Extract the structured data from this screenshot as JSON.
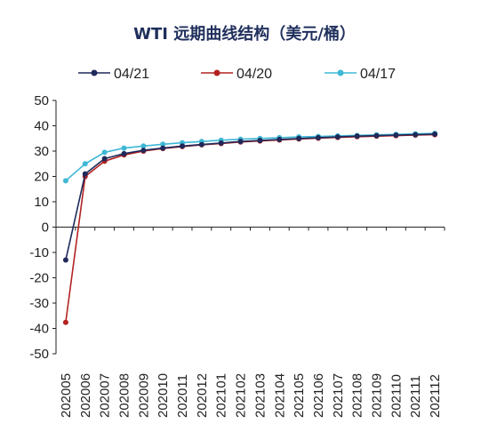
{
  "chart_data": {
    "type": "line",
    "title": "WTI 远期曲线结构（美元/桶）",
    "xlabel": "",
    "ylabel": "",
    "ylim": [
      -50,
      50
    ],
    "yticks": [
      "50",
      "40",
      "30",
      "20",
      "10",
      "0",
      "-10",
      "-20",
      "-30",
      "-40",
      "-50"
    ],
    "grid": false,
    "legend_position": "top",
    "categories": [
      "202005",
      "202006",
      "202007",
      "202008",
      "202009",
      "202010",
      "202011",
      "202012",
      "202101",
      "202102",
      "202103",
      "202104",
      "202105",
      "202106",
      "202107",
      "202108",
      "202109",
      "202110",
      "202111",
      "202112"
    ],
    "series": [
      {
        "name": "04/21",
        "color": "#1f2a5a",
        "values": [
          -13,
          21,
          27,
          29,
          30.3,
          31.2,
          32,
          32.6,
          33.2,
          33.8,
          34.2,
          34.6,
          35,
          35.3,
          35.6,
          35.9,
          36.1,
          36.3,
          36.5,
          36.7
        ]
      },
      {
        "name": "04/20",
        "color": "#b22222",
        "values": [
          -37.6,
          20,
          26,
          28.5,
          30,
          31,
          31.8,
          32.5,
          33,
          33.6,
          34,
          34.4,
          34.8,
          35.1,
          35.4,
          35.7,
          35.9,
          36.1,
          36.3,
          36.5
        ]
      },
      {
        "name": "04/17",
        "color": "#3fb8d6",
        "values": [
          18.3,
          25,
          29.5,
          31.2,
          32,
          32.7,
          33.3,
          33.8,
          34.3,
          34.7,
          35,
          35.3,
          35.6,
          35.8,
          36,
          36.2,
          36.4,
          36.6,
          36.8,
          37
        ]
      }
    ]
  }
}
